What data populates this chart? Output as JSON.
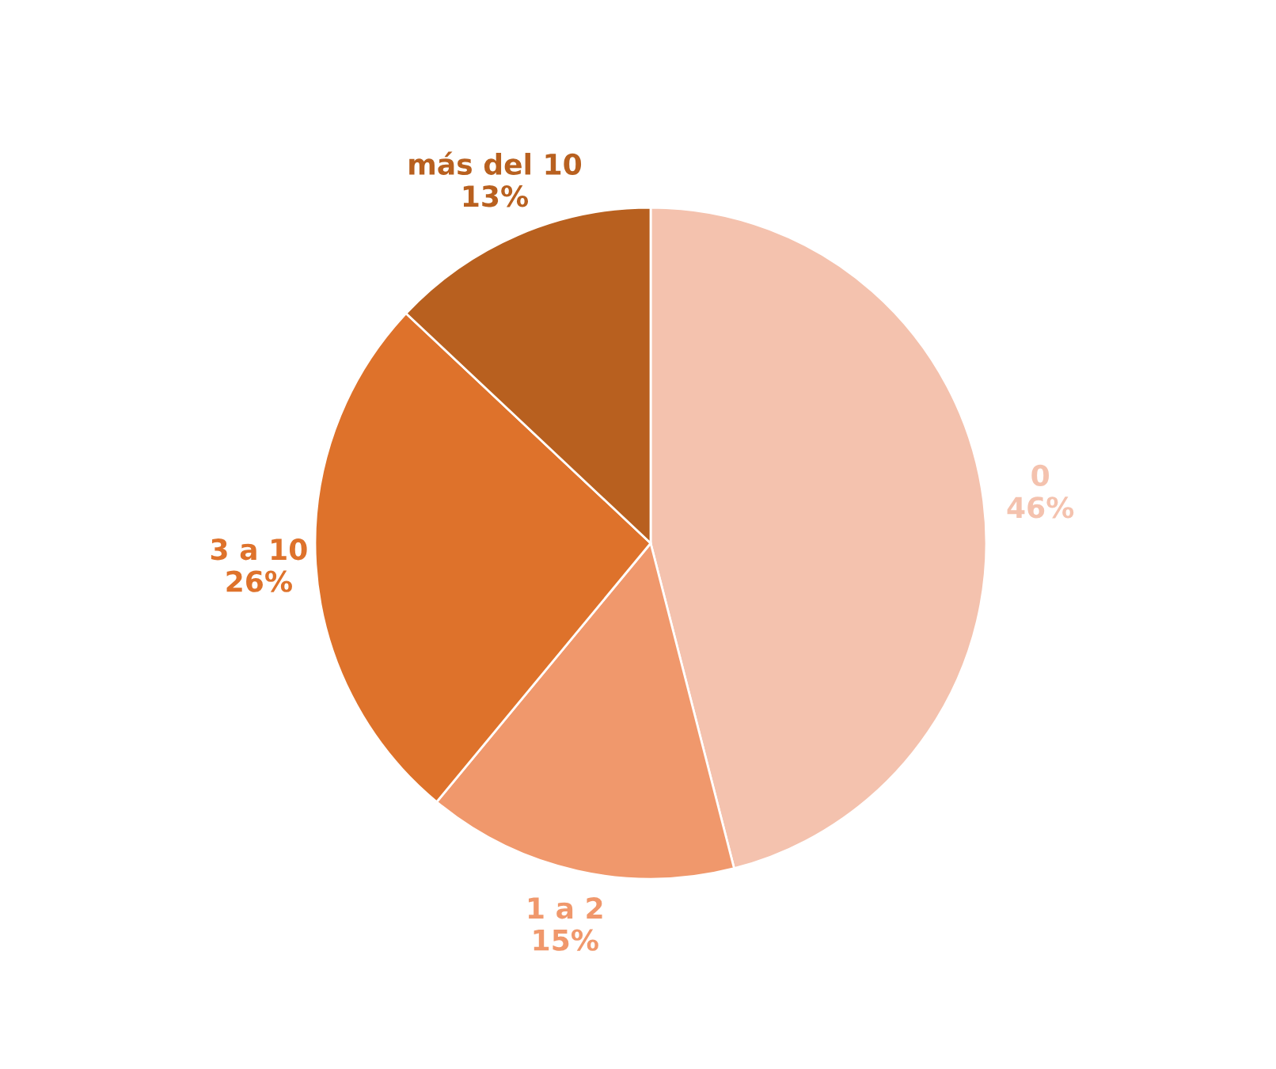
{
  "chart_data": {
    "type": "pie",
    "categories": [
      "0",
      "1 a 2",
      "3 a 10",
      "más del 10"
    ],
    "values": [
      46,
      15,
      26,
      13
    ],
    "value_labels": [
      "46%",
      "15%",
      "26%",
      "13%"
    ],
    "colors": [
      "#f4c2ae",
      "#f0986c",
      "#de722b",
      "#b8601f"
    ],
    "legend": false
  }
}
